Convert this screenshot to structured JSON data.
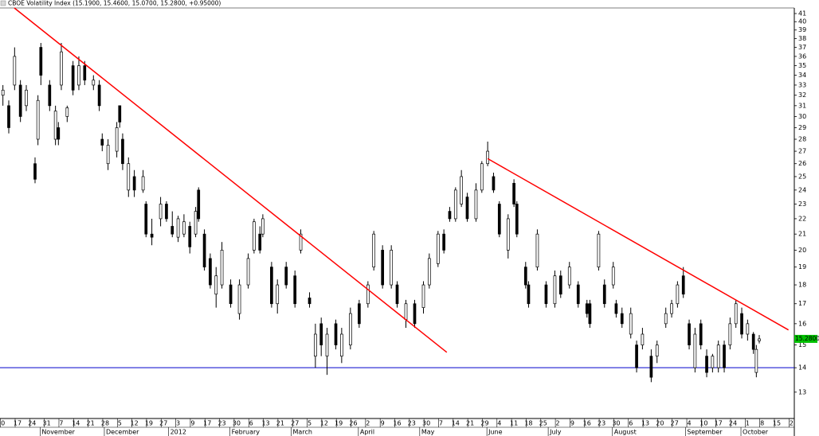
{
  "chart_data": {
    "type": "candlestick",
    "title": "CBOE Volatility Index (15.1900, 15.4600, 15.0700, 15.2800, +0.95000)",
    "log_scale": true,
    "grid": false,
    "xlim": [
      0,
      272
    ],
    "ylim": [
      12.03,
      41.7
    ],
    "yticks": [
      13,
      14,
      15,
      16,
      17,
      18,
      19,
      20,
      21,
      22,
      23,
      24,
      25,
      26,
      27,
      28,
      29,
      30,
      31,
      32,
      33,
      34,
      35,
      36,
      37,
      38,
      39,
      40,
      41
    ],
    "xticks": [
      {
        "value": 1,
        "label": "0"
      },
      {
        "value": 6,
        "label": "17"
      },
      {
        "value": 11,
        "label": "24"
      },
      {
        "value": 16,
        "label": "31"
      },
      {
        "value": 21,
        "label": "7"
      },
      {
        "value": 26,
        "label": "14"
      },
      {
        "value": 31,
        "label": "21"
      },
      {
        "value": 36,
        "label": "28"
      },
      {
        "value": 41,
        "label": "5"
      },
      {
        "value": 46,
        "label": "12"
      },
      {
        "value": 51,
        "label": "19"
      },
      {
        "value": 56,
        "label": "27"
      },
      {
        "value": 61,
        "label": "3"
      },
      {
        "value": 66,
        "label": "9"
      },
      {
        "value": 71,
        "label": "17"
      },
      {
        "value": 76,
        "label": "23"
      },
      {
        "value": 81,
        "label": "30"
      },
      {
        "value": 86,
        "label": "6"
      },
      {
        "value": 91,
        "label": "13"
      },
      {
        "value": 96,
        "label": "21"
      },
      {
        "value": 101,
        "label": "27"
      },
      {
        "value": 106,
        "label": "5"
      },
      {
        "value": 111,
        "label": "12"
      },
      {
        "value": 116,
        "label": "19"
      },
      {
        "value": 121,
        "label": "26"
      },
      {
        "value": 126,
        "label": "2"
      },
      {
        "value": 131,
        "label": "9"
      },
      {
        "value": 136,
        "label": "16"
      },
      {
        "value": 141,
        "label": "23"
      },
      {
        "value": 146,
        "label": "30"
      },
      {
        "value": 151,
        "label": "7"
      },
      {
        "value": 156,
        "label": "14"
      },
      {
        "value": 161,
        "label": "21"
      },
      {
        "value": 166,
        "label": "29"
      },
      {
        "value": 171,
        "label": "4"
      },
      {
        "value": 176,
        "label": "11"
      },
      {
        "value": 181,
        "label": "18"
      },
      {
        "value": 186,
        "label": "25"
      },
      {
        "value": 191,
        "label": "2"
      },
      {
        "value": 196,
        "label": "9"
      },
      {
        "value": 201,
        "label": "16"
      },
      {
        "value": 206,
        "label": "23"
      },
      {
        "value": 211,
        "label": "30"
      },
      {
        "value": 216,
        "label": "6"
      },
      {
        "value": 221,
        "label": "13"
      },
      {
        "value": 226,
        "label": "20"
      },
      {
        "value": 231,
        "label": "27"
      },
      {
        "value": 236,
        "label": "4"
      },
      {
        "value": 241,
        "label": "10"
      },
      {
        "value": 246,
        "label": "17"
      },
      {
        "value": 251,
        "label": "24"
      },
      {
        "value": 256,
        "label": "1"
      },
      {
        "value": 261,
        "label": "8"
      },
      {
        "value": 266,
        "label": "15"
      },
      {
        "value": 271,
        "label": "2"
      }
    ],
    "month_labels": [
      {
        "value": 14,
        "label": "November"
      },
      {
        "value": 36,
        "label": "December"
      },
      {
        "value": 58,
        "label": "2012"
      },
      {
        "value": 79,
        "label": "February"
      },
      {
        "value": 100,
        "label": "March"
      },
      {
        "value": 123,
        "label": "April"
      },
      {
        "value": 144,
        "label": "May"
      },
      {
        "value": 167,
        "label": "June"
      },
      {
        "value": 188,
        "label": "July"
      },
      {
        "value": 210,
        "label": "August"
      },
      {
        "value": 235,
        "label": "September"
      },
      {
        "value": 254,
        "label": "October"
      }
    ],
    "up_color": "#ffffff",
    "down_color": "#000000",
    "candles": [
      {
        "x": 1,
        "o": 32,
        "h": 33,
        "l": 31,
        "c": 32.5
      },
      {
        "x": 3,
        "o": 31,
        "h": 31.5,
        "l": 28.5,
        "c": 29
      },
      {
        "x": 5,
        "o": 33,
        "h": 37,
        "l": 32.5,
        "c": 36
      },
      {
        "x": 7,
        "o": 33,
        "h": 33.5,
        "l": 29.5,
        "c": 30
      },
      {
        "x": 9,
        "o": 31,
        "h": 33,
        "l": 30.5,
        "c": 32.5
      },
      {
        "x": 12,
        "o": 26,
        "h": 26.5,
        "l": 24.5,
        "c": 24.8
      },
      {
        "x": 13,
        "o": 28,
        "h": 32,
        "l": 27.5,
        "c": 31.5
      },
      {
        "x": 14,
        "o": 37,
        "h": 37.5,
        "l": 33,
        "c": 34
      },
      {
        "x": 17,
        "o": 33,
        "h": 33.5,
        "l": 30.5,
        "c": 31
      },
      {
        "x": 19,
        "o": 28,
        "h": 31,
        "l": 27.5,
        "c": 30.5
      },
      {
        "x": 20,
        "o": 29,
        "h": 29.5,
        "l": 27.5,
        "c": 28
      },
      {
        "x": 21,
        "o": 33,
        "h": 37.5,
        "l": 32.5,
        "c": 36.5
      },
      {
        "x": 23,
        "o": 30,
        "h": 31,
        "l": 29.5,
        "c": 30.8
      },
      {
        "x": 25,
        "o": 35,
        "h": 35.5,
        "l": 32,
        "c": 32.5
      },
      {
        "x": 27,
        "o": 33,
        "h": 36,
        "l": 32.5,
        "c": 35
      },
      {
        "x": 29,
        "o": 35,
        "h": 35.5,
        "l": 33,
        "c": 33.5
      },
      {
        "x": 32,
        "o": 33,
        "h": 34,
        "l": 32.5,
        "c": 33.5
      },
      {
        "x": 34,
        "o": 33,
        "h": 33.5,
        "l": 30.5,
        "c": 31
      },
      {
        "x": 35,
        "o": 28,
        "h": 28.5,
        "l": 27,
        "c": 27.5
      },
      {
        "x": 37,
        "o": 26,
        "h": 28,
        "l": 25.5,
        "c": 27.5
      },
      {
        "x": 40,
        "o": 27,
        "h": 29.5,
        "l": 26.5,
        "c": 29
      },
      {
        "x": 41,
        "o": 31,
        "h": 31,
        "l": 29,
        "c": 29.5
      },
      {
        "x": 42,
        "o": 28,
        "h": 28.5,
        "l": 25.5,
        "c": 26
      },
      {
        "x": 44,
        "o": 24,
        "h": 26.5,
        "l": 23.5,
        "c": 26
      },
      {
        "x": 46,
        "o": 25,
        "h": 25.5,
        "l": 23.5,
        "c": 24
      },
      {
        "x": 49,
        "o": 24,
        "h": 25.5,
        "l": 23.8,
        "c": 25
      },
      {
        "x": 50,
        "o": 23,
        "h": 23.2,
        "l": 20.8,
        "c": 21
      },
      {
        "x": 52,
        "o": 21,
        "h": 22,
        "l": 20.3,
        "c": 20.8
      },
      {
        "x": 55,
        "o": 22,
        "h": 23.5,
        "l": 21.5,
        "c": 23
      },
      {
        "x": 57,
        "o": 23,
        "h": 23.2,
        "l": 21.8,
        "c": 22
      },
      {
        "x": 59,
        "o": 21.5,
        "h": 22.5,
        "l": 20.8,
        "c": 21
      },
      {
        "x": 61,
        "o": 20.8,
        "h": 22.2,
        "l": 20.5,
        "c": 22
      },
      {
        "x": 63,
        "o": 21,
        "h": 22.3,
        "l": 20.8,
        "c": 21.8
      },
      {
        "x": 65,
        "o": 21.5,
        "h": 21.8,
        "l": 19.8,
        "c": 20.2
      },
      {
        "x": 67,
        "o": 21,
        "h": 22.8,
        "l": 20.8,
        "c": 22.5
      },
      {
        "x": 68,
        "o": 24,
        "h": 24.2,
        "l": 21.8,
        "c": 22
      },
      {
        "x": 70,
        "o": 21,
        "h": 21.3,
        "l": 18.8,
        "c": 19
      },
      {
        "x": 72,
        "o": 19.5,
        "h": 19.8,
        "l": 17.8,
        "c": 18
      },
      {
        "x": 74,
        "o": 17.5,
        "h": 19,
        "l": 16.8,
        "c": 18.5
      },
      {
        "x": 76,
        "o": 18,
        "h": 20.5,
        "l": 17.8,
        "c": 20
      },
      {
        "x": 79,
        "o": 18,
        "h": 18.3,
        "l": 16.8,
        "c": 17
      },
      {
        "x": 82,
        "o": 16.5,
        "h": 18.3,
        "l": 16.2,
        "c": 18
      },
      {
        "x": 85,
        "o": 18,
        "h": 19.8,
        "l": 17.8,
        "c": 19.5
      },
      {
        "x": 87,
        "o": 20,
        "h": 22,
        "l": 19.8,
        "c": 21.8
      },
      {
        "x": 89,
        "o": 21,
        "h": 21.5,
        "l": 19.8,
        "c": 20
      },
      {
        "x": 90,
        "o": 21,
        "h": 22.3,
        "l": 20.8,
        "c": 22
      },
      {
        "x": 93,
        "o": 19,
        "h": 19.3,
        "l": 16.8,
        "c": 17
      },
      {
        "x": 95,
        "o": 17,
        "h": 18.3,
        "l": 16.5,
        "c": 18
      },
      {
        "x": 98,
        "o": 19,
        "h": 19.3,
        "l": 17.8,
        "c": 18
      },
      {
        "x": 101,
        "o": 18.5,
        "h": 18.8,
        "l": 16.8,
        "c": 17
      },
      {
        "x": 103,
        "o": 20,
        "h": 21.3,
        "l": 19.8,
        "c": 21
      },
      {
        "x": 106,
        "o": 17.3,
        "h": 17.6,
        "l": 16.8,
        "c": 17
      },
      {
        "x": 108,
        "o": 14.5,
        "h": 16,
        "l": 14,
        "c": 15.5
      },
      {
        "x": 110,
        "o": 16,
        "h": 16.3,
        "l": 14.5,
        "c": 15
      },
      {
        "x": 112,
        "o": 14.5,
        "h": 15.8,
        "l": 13.7,
        "c": 15.5
      },
      {
        "x": 115,
        "o": 16,
        "h": 16.2,
        "l": 14.8,
        "c": 15
      },
      {
        "x": 117,
        "o": 14.5,
        "h": 15.8,
        "l": 14.2,
        "c": 15.5
      },
      {
        "x": 120,
        "o": 15,
        "h": 16.8,
        "l": 14.8,
        "c": 16.5
      },
      {
        "x": 123,
        "o": 17,
        "h": 17.2,
        "l": 15.8,
        "c": 16
      },
      {
        "x": 126,
        "o": 17,
        "h": 18.2,
        "l": 16.8,
        "c": 18
      },
      {
        "x": 128,
        "o": 19,
        "h": 21.2,
        "l": 18.8,
        "c": 21
      },
      {
        "x": 131,
        "o": 20,
        "h": 20.3,
        "l": 17.8,
        "c": 18
      },
      {
        "x": 134,
        "o": 18,
        "h": 20.3,
        "l": 17.8,
        "c": 20
      },
      {
        "x": 136,
        "o": 18,
        "h": 18.2,
        "l": 16.8,
        "c": 17
      },
      {
        "x": 139,
        "o": 16.2,
        "h": 17.2,
        "l": 15.8,
        "c": 17
      },
      {
        "x": 142,
        "o": 17,
        "h": 17.2,
        "l": 15.8,
        "c": 16
      },
      {
        "x": 145,
        "o": 16.8,
        "h": 18.2,
        "l": 16.5,
        "c": 18
      },
      {
        "x": 147,
        "o": 18,
        "h": 19.8,
        "l": 17.8,
        "c": 19.5
      },
      {
        "x": 150,
        "o": 19.2,
        "h": 21.2,
        "l": 19,
        "c": 21
      },
      {
        "x": 152,
        "o": 21,
        "h": 21.3,
        "l": 19.8,
        "c": 20
      },
      {
        "x": 154,
        "o": 22.5,
        "h": 22.8,
        "l": 21.8,
        "c": 22
      },
      {
        "x": 156,
        "o": 22,
        "h": 24.2,
        "l": 21.8,
        "c": 24
      },
      {
        "x": 158,
        "o": 23,
        "h": 25.5,
        "l": 22.8,
        "c": 25
      },
      {
        "x": 160,
        "o": 23.5,
        "h": 23.8,
        "l": 21.8,
        "c": 22
      },
      {
        "x": 163,
        "o": 22,
        "h": 24.5,
        "l": 21.8,
        "c": 24
      },
      {
        "x": 165,
        "o": 24,
        "h": 26.2,
        "l": 23.8,
        "c": 26
      },
      {
        "x": 167,
        "o": 26,
        "h": 27.8,
        "l": 25.8,
        "c": 27
      },
      {
        "x": 169,
        "o": 25,
        "h": 25.3,
        "l": 23.8,
        "c": 24
      },
      {
        "x": 171,
        "o": 23,
        "h": 23.2,
        "l": 20.8,
        "c": 21
      },
      {
        "x": 174,
        "o": 20,
        "h": 22.3,
        "l": 19.5,
        "c": 22
      },
      {
        "x": 176,
        "o": 24.5,
        "h": 24.8,
        "l": 22.8,
        "c": 23
      },
      {
        "x": 177,
        "o": 23,
        "h": 23.2,
        "l": 20.8,
        "c": 21
      },
      {
        "x": 180,
        "o": 19,
        "h": 19.3,
        "l": 17.8,
        "c": 18
      },
      {
        "x": 181,
        "o": 18,
        "h": 18.2,
        "l": 16.8,
        "c": 17
      },
      {
        "x": 184,
        "o": 19,
        "h": 21.3,
        "l": 18.8,
        "c": 21
      },
      {
        "x": 187,
        "o": 18,
        "h": 18.2,
        "l": 16.8,
        "c": 17
      },
      {
        "x": 190,
        "o": 17,
        "h": 18.8,
        "l": 16.8,
        "c": 18.5
      },
      {
        "x": 192,
        "o": 18.5,
        "h": 18.8,
        "l": 17.3,
        "c": 17.5
      },
      {
        "x": 195,
        "o": 18,
        "h": 19.3,
        "l": 17.8,
        "c": 19
      },
      {
        "x": 198,
        "o": 18,
        "h": 18.2,
        "l": 16.8,
        "c": 17
      },
      {
        "x": 201,
        "o": 17,
        "h": 17.2,
        "l": 16.3,
        "c": 16.5
      },
      {
        "x": 202,
        "o": 17,
        "h": 17.2,
        "l": 15.8,
        "c": 16
      },
      {
        "x": 205,
        "o": 19,
        "h": 21.2,
        "l": 18.8,
        "c": 21
      },
      {
        "x": 207,
        "o": 18,
        "h": 18.3,
        "l": 16.8,
        "c": 17
      },
      {
        "x": 210,
        "o": 18,
        "h": 19.3,
        "l": 17.8,
        "c": 19
      },
      {
        "x": 211,
        "o": 17,
        "h": 17.2,
        "l": 16.3,
        "c": 16.5
      },
      {
        "x": 213,
        "o": 16.5,
        "h": 16.8,
        "l": 15.8,
        "c": 16
      },
      {
        "x": 216,
        "o": 15.5,
        "h": 16.8,
        "l": 15.3,
        "c": 16.5
      },
      {
        "x": 218,
        "o": 15,
        "h": 15.2,
        "l": 13.8,
        "c": 14
      },
      {
        "x": 220,
        "o": 15,
        "h": 15.8,
        "l": 14.8,
        "c": 15.5
      },
      {
        "x": 223,
        "o": 14.5,
        "h": 14.8,
        "l": 13.4,
        "c": 13.6
      },
      {
        "x": 225,
        "o": 14.5,
        "h": 15.2,
        "l": 14.2,
        "c": 15
      },
      {
        "x": 228,
        "o": 16,
        "h": 16.8,
        "l": 15.8,
        "c": 16.5
      },
      {
        "x": 230,
        "o": 16.5,
        "h": 17.2,
        "l": 16.3,
        "c": 17
      },
      {
        "x": 232,
        "o": 17,
        "h": 18.2,
        "l": 16.8,
        "c": 18
      },
      {
        "x": 234,
        "o": 18.5,
        "h": 19,
        "l": 17.3,
        "c": 17.5
      },
      {
        "x": 236,
        "o": 16,
        "h": 16.2,
        "l": 14.8,
        "c": 15
      },
      {
        "x": 238,
        "o": 14,
        "h": 15.8,
        "l": 13.8,
        "c": 15.5
      },
      {
        "x": 240,
        "o": 16,
        "h": 16.2,
        "l": 14.8,
        "c": 15
      },
      {
        "x": 242,
        "o": 14.5,
        "h": 14.8,
        "l": 13.6,
        "c": 13.8
      },
      {
        "x": 244,
        "o": 14,
        "h": 14.6,
        "l": 13.8,
        "c": 14.5
      },
      {
        "x": 246,
        "o": 14,
        "h": 15.2,
        "l": 13.8,
        "c": 15
      },
      {
        "x": 248,
        "o": 15,
        "h": 15.2,
        "l": 13.8,
        "c": 14
      },
      {
        "x": 250,
        "o": 15,
        "h": 16.3,
        "l": 14.8,
        "c": 16
      },
      {
        "x": 252,
        "o": 16,
        "h": 17.2,
        "l": 15.8,
        "c": 17
      },
      {
        "x": 254,
        "o": 16.5,
        "h": 16.8,
        "l": 15.3,
        "c": 15.5
      },
      {
        "x": 256,
        "o": 15.5,
        "h": 16.2,
        "l": 15.2,
        "c": 16
      },
      {
        "x": 258,
        "o": 15.5,
        "h": 15.6,
        "l": 14.6,
        "c": 14.8
      },
      {
        "x": 259,
        "o": 13.8,
        "h": 15,
        "l": 13.6,
        "c": 14.8
      },
      {
        "x": 260,
        "o": 15.19,
        "h": 15.46,
        "l": 15.07,
        "c": 15.28
      }
    ],
    "trendlines": [
      {
        "color": "#ff0000",
        "x": [
          4.9,
          153
        ],
        "y": [
          41.7,
          14.67
        ]
      },
      {
        "color": "#ff0000",
        "x": [
          167,
          270
        ],
        "y": [
          26.4,
          15.7
        ]
      }
    ],
    "hlines": [
      {
        "value": 14,
        "color": "#0000cc"
      }
    ],
    "last_price": {
      "value": 15.28,
      "label": "15.2800",
      "color": "#00c000"
    }
  }
}
